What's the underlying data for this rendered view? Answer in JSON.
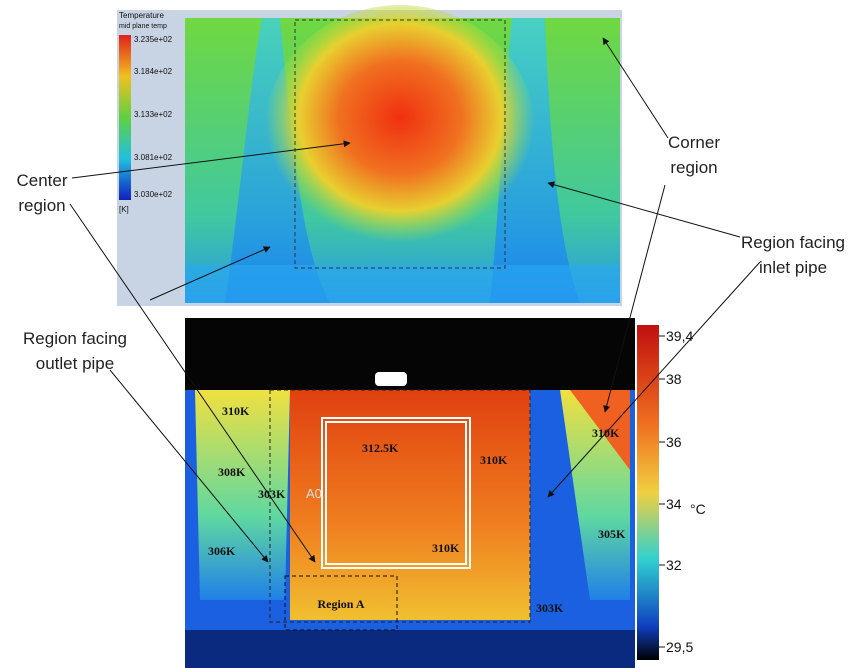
{
  "cfd": {
    "legend_title": "Temperature",
    "legend_subtitle": "mid plane temp",
    "legend_ticks": [
      "3.235e+02",
      "3.184e+02",
      "3.133e+02",
      "3.081e+02",
      "3.030e+02"
    ],
    "legend_unit": "[K]"
  },
  "thermal": {
    "scale_ticks": [
      "39,4",
      "38",
      "36",
      "34",
      "32",
      "29,5"
    ],
    "unit": "°C",
    "labels": [
      "310K",
      "308K",
      "303K",
      "306K",
      "312.5K",
      "310K",
      "310K",
      "310K",
      "305K",
      "303K"
    ],
    "marker": "A0",
    "region_box": "Region A"
  },
  "annotations": {
    "center": [
      "Center",
      "region"
    ],
    "corner": [
      "Corner",
      "region"
    ],
    "inlet": [
      "Region facing",
      "inlet pipe"
    ],
    "outlet": [
      "Region facing",
      "outlet pipe"
    ]
  }
}
